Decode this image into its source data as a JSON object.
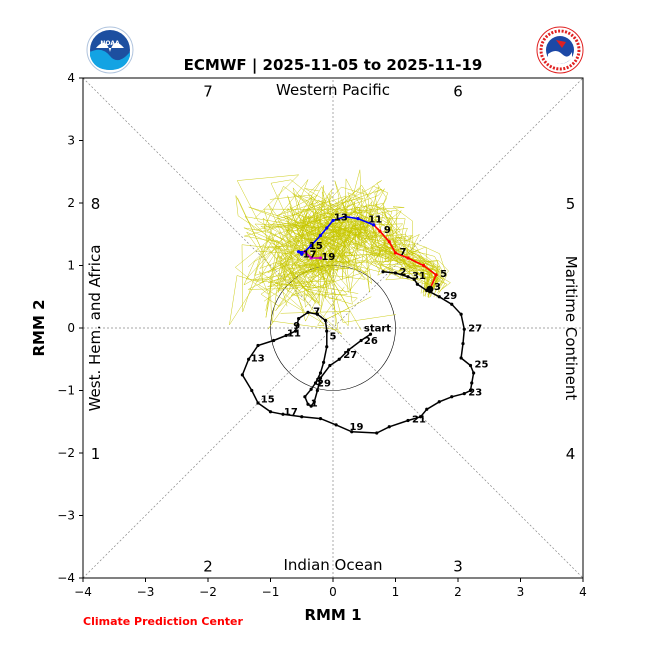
{
  "chart_data": {
    "type": "line",
    "title": "ECMWF | 2025-11-05 to 2025-11-19",
    "xlabel": "RMM 1",
    "ylabel": "RMM 2",
    "xlim": [
      -4,
      4
    ],
    "ylim": [
      -4,
      4
    ],
    "xticks": [
      "−4",
      "−3",
      "−2",
      "−1",
      "0",
      "1",
      "2",
      "3",
      "4"
    ],
    "yticks": [
      "−4",
      "−3",
      "−2",
      "−1",
      "0",
      "1",
      "2",
      "3",
      "4"
    ],
    "region_labels": {
      "top": "Western Pacific",
      "bottom": "Indian Ocean",
      "left": "West. Hem. and Africa",
      "right": "Maritime Continent"
    },
    "phase_labels": [
      {
        "text": "1",
        "x": -3.8,
        "y": -2.0
      },
      {
        "text": "2",
        "x": -2.0,
        "y": -3.8
      },
      {
        "text": "3",
        "x": 2.0,
        "y": -3.8
      },
      {
        "text": "4",
        "x": 3.8,
        "y": -2.0
      },
      {
        "text": "5",
        "x": 3.8,
        "y": 2.0
      },
      {
        "text": "6",
        "x": 2.0,
        "y": 3.8
      },
      {
        "text": "7",
        "x": -2.0,
        "y": 3.8
      },
      {
        "text": "8",
        "x": -3.8,
        "y": 2.0
      }
    ],
    "observed": {
      "color": "#000000",
      "points": [
        [
          0.8,
          0.9
        ],
        [
          1.0,
          0.88
        ],
        [
          1.2,
          0.82
        ],
        [
          1.3,
          0.78
        ],
        [
          1.35,
          0.7
        ],
        [
          1.5,
          0.6
        ],
        [
          1.55,
          0.58
        ],
        [
          1.7,
          0.5
        ],
        [
          1.9,
          0.38
        ],
        [
          2.05,
          0.22
        ],
        [
          2.1,
          -0.02
        ],
        [
          2.08,
          -0.25
        ],
        [
          2.05,
          -0.48
        ],
        [
          2.2,
          -0.6
        ],
        [
          2.25,
          -0.72
        ],
        [
          2.22,
          -0.88
        ],
        [
          2.2,
          -1.0
        ],
        [
          2.1,
          -1.05
        ],
        [
          1.9,
          -1.1
        ],
        [
          1.7,
          -1.18
        ],
        [
          1.5,
          -1.3
        ],
        [
          1.4,
          -1.42
        ],
        [
          1.2,
          -1.48
        ],
        [
          0.9,
          -1.58
        ],
        [
          0.7,
          -1.68
        ],
        [
          0.3,
          -1.66
        ],
        [
          0.05,
          -1.55
        ],
        [
          -0.2,
          -1.45
        ],
        [
          -0.5,
          -1.42
        ],
        [
          -0.8,
          -1.38
        ],
        [
          -1.0,
          -1.34
        ],
        [
          -1.2,
          -1.2
        ],
        [
          -1.3,
          -1.0
        ],
        [
          -1.45,
          -0.75
        ],
        [
          -1.35,
          -0.5
        ],
        [
          -1.2,
          -0.28
        ],
        [
          -0.95,
          -0.2
        ],
        [
          -0.75,
          -0.12
        ],
        [
          -0.6,
          -0.05
        ],
        [
          -0.55,
          0.15
        ],
        [
          -0.4,
          0.25
        ],
        [
          -0.25,
          0.22
        ],
        [
          -0.12,
          0.12
        ],
        [
          -0.1,
          -0.05
        ],
        [
          -0.1,
          -0.3
        ],
        [
          -0.15,
          -0.55
        ],
        [
          -0.2,
          -0.72
        ],
        [
          -0.28,
          -0.88
        ],
        [
          -0.35,
          -0.98
        ],
        [
          -0.45,
          -1.1
        ],
        [
          -0.4,
          -1.22
        ],
        [
          -0.35,
          -1.25
        ],
        [
          -0.3,
          -1.18
        ],
        [
          -0.25,
          -1.0
        ],
        [
          -0.2,
          -0.8
        ],
        [
          -0.05,
          -0.6
        ],
        [
          0.1,
          -0.5
        ],
        [
          0.25,
          -0.35
        ],
        [
          0.45,
          -0.2
        ],
        [
          0.6,
          -0.1
        ]
      ],
      "labels": [
        {
          "text": "2",
          "x": 1.0,
          "y": 0.88
        },
        {
          "text": "31",
          "x": 1.2,
          "y": 0.82
        },
        {
          "text": "29",
          "x": 1.7,
          "y": 0.5
        },
        {
          "text": "27",
          "x": 2.1,
          "y": -0.02
        },
        {
          "text": "25",
          "x": 2.2,
          "y": -0.6
        },
        {
          "text": "23",
          "x": 2.1,
          "y": -1.05
        },
        {
          "text": "21",
          "x": 1.2,
          "y": -1.48
        },
        {
          "text": "19",
          "x": 0.2,
          "y": -1.6
        },
        {
          "text": "17",
          "x": -0.85,
          "y": -1.36
        },
        {
          "text": "15",
          "x": -1.22,
          "y": -1.16
        },
        {
          "text": "13",
          "x": -1.38,
          "y": -0.5
        },
        {
          "text": "11",
          "x": -0.8,
          "y": -0.1
        },
        {
          "text": "9",
          "x": -0.7,
          "y": 0.02
        },
        {
          "text": "7",
          "x": -0.38,
          "y": 0.25
        },
        {
          "text": "5",
          "x": -0.12,
          "y": -0.15
        },
        {
          "text": "3",
          "x": -0.35,
          "y": -0.88
        },
        {
          "text": "29",
          "x": -0.32,
          "y": -0.9
        },
        {
          "text": "1",
          "x": -0.42,
          "y": -1.22
        },
        {
          "text": "27",
          "x": 0.1,
          "y": -0.45
        },
        {
          "text": "26",
          "x": 0.43,
          "y": -0.22
        },
        {
          "text": "start",
          "x": 0.43,
          "y": -0.02
        }
      ]
    },
    "forecast": {
      "segments": [
        {
          "color": "#ff0000",
          "points": [
            [
              1.55,
              0.62
            ],
            [
              1.65,
              0.85
            ],
            [
              1.45,
              1.0
            ],
            [
              1.2,
              1.12
            ],
            [
              1.0,
              1.2
            ],
            [
              0.9,
              1.38
            ],
            [
              0.75,
              1.55
            ],
            [
              0.65,
              1.65
            ]
          ]
        },
        {
          "color": "#0000ff",
          "points": [
            [
              0.65,
              1.65
            ],
            [
              0.4,
              1.75
            ],
            [
              0.2,
              1.78
            ],
            [
              0.0,
              1.72
            ],
            [
              -0.1,
              1.6
            ],
            [
              -0.2,
              1.48
            ],
            [
              -0.35,
              1.32
            ],
            [
              -0.5,
              1.18
            ],
            [
              -0.55,
              1.22
            ],
            [
              -0.45,
              1.22
            ]
          ]
        },
        {
          "color": "#cc00cc",
          "points": [
            [
              -0.45,
              1.22
            ],
            [
              -0.35,
              1.12
            ],
            [
              -0.2,
              1.12
            ]
          ]
        }
      ],
      "labels": [
        {
          "text": "5",
          "x": 1.65,
          "y": 0.85
        },
        {
          "text": "3",
          "x": 1.55,
          "y": 0.64
        },
        {
          "text": "7",
          "x": 1.0,
          "y": 1.2
        },
        {
          "text": "9",
          "x": 0.75,
          "y": 1.55
        },
        {
          "text": "11",
          "x": 0.5,
          "y": 1.72
        },
        {
          "text": "13",
          "x": -0.05,
          "y": 1.75
        },
        {
          "text": "15",
          "x": -0.45,
          "y": 1.3
        },
        {
          "text": "17",
          "x": -0.55,
          "y": 1.16
        },
        {
          "text": "19",
          "x": -0.25,
          "y": 1.12
        }
      ]
    },
    "ensemble": {
      "color": "#c8c800",
      "members": 51,
      "seed": 7
    },
    "credit": "Climate Prediction Center",
    "logos": [
      "NOAA",
      "NATIONAL WEATHER SERVICE"
    ]
  }
}
